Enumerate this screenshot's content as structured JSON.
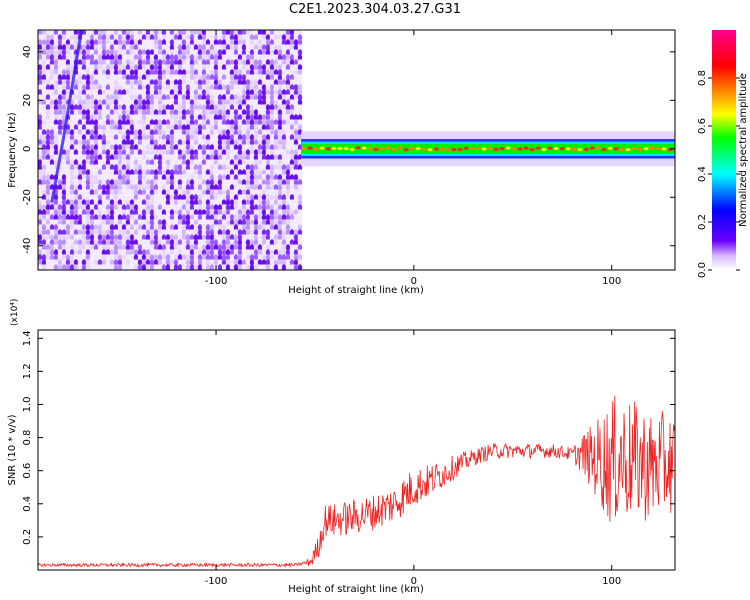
{
  "title": "C2E1.2023.304.03.27.G31",
  "chart_data": [
    {
      "type": "heatmap",
      "xlabel": "Height of straight line (km)",
      "ylabel": "Frequency (Hz)",
      "xlim": [
        -190,
        132
      ],
      "ylim": [
        -50,
        49
      ],
      "xticks": [
        -100,
        0,
        100
      ],
      "yticks": [
        -40,
        -20,
        0,
        20,
        40
      ],
      "colorbar": {
        "label": "Normalized spectral amplitude",
        "range": [
          0,
          1
        ],
        "ticks": [
          "0.0",
          "0.2",
          "0.4",
          "0.6",
          "0.8"
        ],
        "colormap": [
          "#ffffff",
          "#6a00ff",
          "#0000ff",
          "#00ffff",
          "#00ff00",
          "#ffff00",
          "#ff8000",
          "#ff0000",
          "#ff0090"
        ]
      },
      "regions": [
        {
          "description_x": [
            -190,
            -57
          ],
          "frequency_range": [
            -50,
            49
          ],
          "level": "noise, ~0.1-0.2"
        },
        {
          "description_x": [
            -57,
            132
          ],
          "frequency_center": 0,
          "frequency_halfwidth": 4,
          "level": "echo, peak ~0.8-0.9"
        }
      ]
    },
    {
      "type": "line",
      "xlabel": "Height of straight line (km)",
      "ylabel": "SNR (10 * v/v)",
      "yscale_label": "(x10⁴)",
      "xlim": [
        -190,
        132
      ],
      "ylim": [
        0,
        1.45
      ],
      "xticks": [
        -100,
        0,
        100
      ],
      "yticks": [
        0.2,
        0.4,
        0.6,
        0.8,
        1.0,
        1.2,
        1.4
      ],
      "series": [
        {
          "color": "#ee2222",
          "points": [
            {
              "x": -190,
              "y": 0.03
            },
            {
              "x": -150,
              "y": 0.03
            },
            {
              "x": -100,
              "y": 0.03
            },
            {
              "x": -60,
              "y": 0.03
            },
            {
              "x": -52,
              "y": 0.05
            },
            {
              "x": -48,
              "y": 0.15
            },
            {
              "x": -45,
              "y": 0.3
            },
            {
              "x": -40,
              "y": 0.3
            },
            {
              "x": -30,
              "y": 0.32
            },
            {
              "x": -20,
              "y": 0.35
            },
            {
              "x": -10,
              "y": 0.4
            },
            {
              "x": 0,
              "y": 0.5
            },
            {
              "x": 10,
              "y": 0.55
            },
            {
              "x": 20,
              "y": 0.62
            },
            {
              "x": 30,
              "y": 0.68
            },
            {
              "x": 40,
              "y": 0.72
            },
            {
              "x": 50,
              "y": 0.72
            },
            {
              "x": 60,
              "y": 0.72
            },
            {
              "x": 70,
              "y": 0.72
            },
            {
              "x": 80,
              "y": 0.7
            },
            {
              "x": 85,
              "y": 0.7
            },
            {
              "x": 90,
              "y": 0.68
            },
            {
              "x": 95,
              "y": 0.66
            },
            {
              "x": 100,
              "y": 0.65
            },
            {
              "x": 105,
              "y": 0.68
            },
            {
              "x": 110,
              "y": 0.66
            },
            {
              "x": 115,
              "y": 0.65
            },
            {
              "x": 120,
              "y": 0.62
            },
            {
              "x": 125,
              "y": 0.64
            },
            {
              "x": 132,
              "y": 0.65
            }
          ],
          "noise": [
            {
              "x": -190,
              "amp": 0.01
            },
            {
              "x": -55,
              "amp": 0.01
            },
            {
              "x": -45,
              "amp": 0.1
            },
            {
              "x": 0,
              "amp": 0.12
            },
            {
              "x": 30,
              "amp": 0.05
            },
            {
              "x": 80,
              "amp": 0.04
            },
            {
              "x": 90,
              "amp": 0.2
            },
            {
              "x": 100,
              "amp": 0.4
            },
            {
              "x": 132,
              "amp": 0.3
            }
          ]
        }
      ]
    }
  ]
}
